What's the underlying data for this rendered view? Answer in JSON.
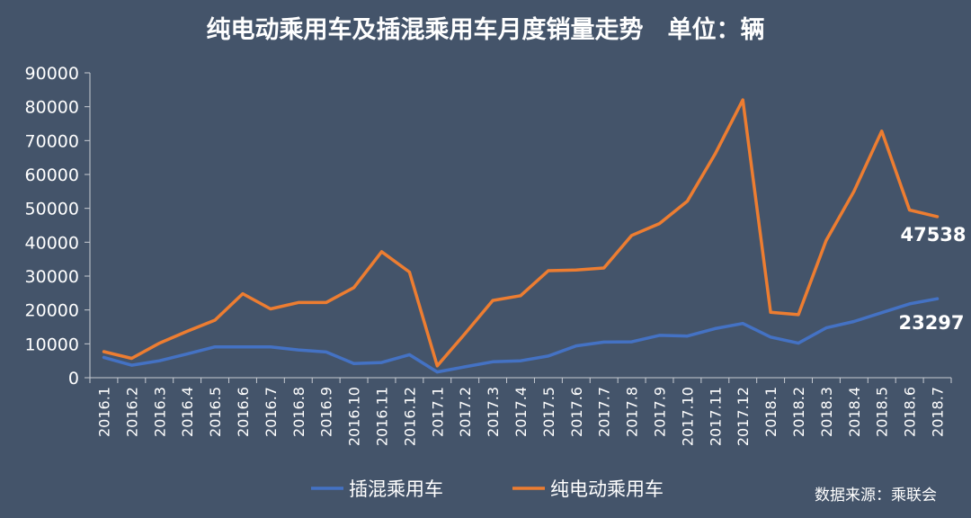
{
  "chart_data": {
    "type": "line",
    "title": "纯电动乘用车及插混乘用车月度销量走势　单位：辆",
    "ylim": [
      0,
      90000
    ],
    "yticks": [
      "0",
      "10000",
      "20000",
      "30000",
      "40000",
      "50000",
      "60000",
      "70000",
      "80000",
      "90000"
    ],
    "grid": false,
    "legend_position": "bottom",
    "categories": [
      "2016.1",
      "2016.2",
      "2016.3",
      "2016.4",
      "2016.5",
      "2016.6",
      "2016.7",
      "2016.8",
      "2016.9",
      "2016.10",
      "2016.11",
      "2016.12",
      "2017.1",
      "2017.2",
      "2017.3",
      "2017.4",
      "2017.5",
      "2017.6",
      "2017.7",
      "2017.8",
      "2017.9",
      "2017.10",
      "2017.11",
      "2017.12",
      "2018.1",
      "2018.2",
      "2018.3",
      "2018.4",
      "2018.5",
      "2018.6",
      "2018.7"
    ],
    "series": [
      {
        "name": "插混乘用车",
        "color": "#4472c4",
        "values": [
          6000,
          3700,
          5000,
          7000,
          9100,
          9100,
          9100,
          8200,
          7600,
          4200,
          4500,
          6800,
          1700,
          3200,
          4700,
          5000,
          6400,
          9400,
          10500,
          10600,
          12500,
          12300,
          14500,
          16000,
          12000,
          10200,
          14700,
          16600,
          19200,
          21800,
          23297
        ]
      },
      {
        "name": "纯电动乘用车",
        "color": "#ed7d31",
        "values": [
          7700,
          5700,
          10200,
          13700,
          17000,
          24800,
          20300,
          22200,
          22200,
          26600,
          37200,
          31200,
          3500,
          13000,
          22800,
          24200,
          31600,
          31800,
          32400,
          42000,
          45500,
          52100,
          66000,
          82000,
          19300,
          18600,
          40500,
          55000,
          72800,
          49500,
          47538
        ]
      }
    ],
    "annotations": [
      "47538",
      "23297"
    ],
    "source": "数据来源：乘联会"
  }
}
